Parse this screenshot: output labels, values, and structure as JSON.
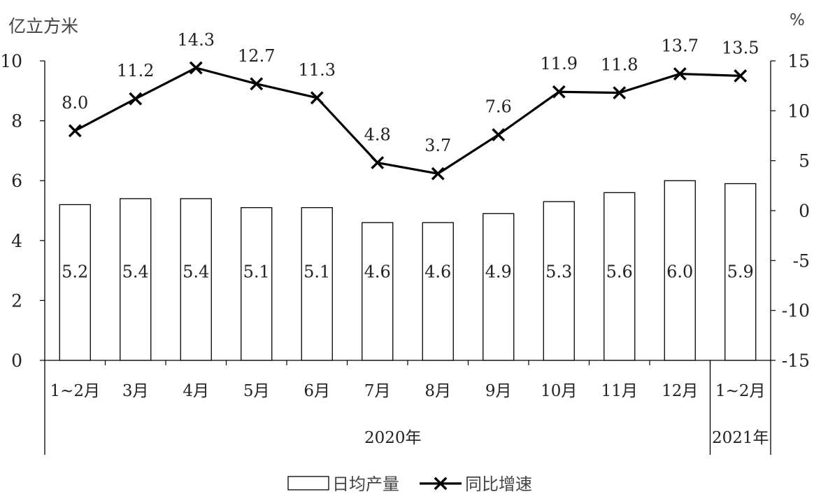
{
  "chart_data": {
    "type": "bar",
    "categories": [
      "1~2月",
      "3月",
      "4月",
      "5月",
      "6月",
      "7月",
      "8月",
      "9月",
      "10月",
      "11月",
      "12月",
      "1~2月"
    ],
    "groups": [
      {
        "label": "2020年",
        "count": 11
      },
      {
        "label": "2021年",
        "count": 1
      }
    ],
    "series": [
      {
        "name": "日均产量",
        "type": "bar",
        "axis": "left",
        "values": [
          5.2,
          5.4,
          5.4,
          5.1,
          5.1,
          4.6,
          4.6,
          4.9,
          5.3,
          5.6,
          6.0,
          5.9
        ],
        "labels": [
          "5.2",
          "5.4",
          "5.4",
          "5.1",
          "5.1",
          "4.6",
          "4.6",
          "4.9",
          "5.3",
          "5.6",
          "6.0",
          "5.9"
        ]
      },
      {
        "name": "同比增速",
        "type": "line",
        "axis": "right",
        "marker": "x",
        "values": [
          8.0,
          11.2,
          14.3,
          12.7,
          11.3,
          4.8,
          3.7,
          7.6,
          11.9,
          11.8,
          13.7,
          13.5
        ],
        "labels": [
          "8.0",
          "11.2",
          "14.3",
          "12.7",
          "11.3",
          "4.8",
          "3.7",
          "7.6",
          "11.9",
          "11.8",
          "13.7",
          "13.5"
        ]
      }
    ],
    "ylabel_left": "亿立方米",
    "ylabel_right": "%",
    "ylim_left": [
      0,
      10
    ],
    "ylim_right": [
      -15,
      15
    ],
    "yticks_left": [
      "0",
      "2",
      "4",
      "6",
      "8",
      "10"
    ],
    "yticks_right": [
      "-15",
      "-10",
      "-5",
      "0",
      "5",
      "10",
      "15"
    ],
    "legend_position": "bottom",
    "grid": false
  }
}
